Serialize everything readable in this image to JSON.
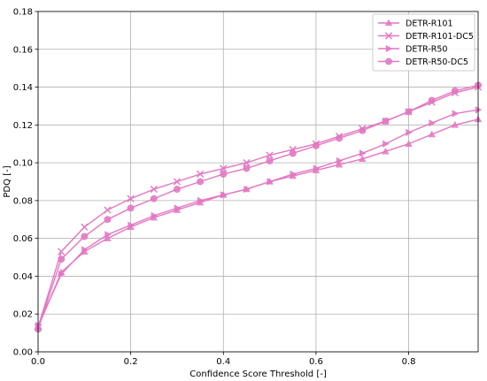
{
  "chart_data": {
    "type": "line",
    "title": "",
    "xlabel": "Confidence Score Threshold [-]",
    "ylabel": "PDQ [-]",
    "xlim": [
      0.0,
      0.95
    ],
    "ylim": [
      0.0,
      0.18
    ],
    "x_ticks": [
      "0.0",
      "0.2",
      "0.4",
      "0.6",
      "0.8"
    ],
    "y_ticks": [
      "0.00",
      "0.02",
      "0.04",
      "0.06",
      "0.08",
      "0.10",
      "0.12",
      "0.14",
      "0.16",
      "0.18"
    ],
    "grid": true,
    "legend_position": "top-right",
    "x": [
      0.0,
      0.05,
      0.1,
      0.15,
      0.2,
      0.25,
      0.3,
      0.35,
      0.4,
      0.45,
      0.5,
      0.55,
      0.6,
      0.65,
      0.7,
      0.75,
      0.8,
      0.85,
      0.9,
      0.95
    ],
    "series": [
      {
        "name": "DETR-R101",
        "marker": "triangle-up",
        "color": "#e377c2",
        "values": [
          0.013,
          0.042,
          0.053,
          0.06,
          0.066,
          0.071,
          0.075,
          0.079,
          0.083,
          0.086,
          0.09,
          0.093,
          0.096,
          0.099,
          0.102,
          0.106,
          0.11,
          0.115,
          0.12,
          0.123
        ]
      },
      {
        "name": "DETR-R101-DC5",
        "marker": "x",
        "color": "#e377c2",
        "values": [
          0.013,
          0.053,
          0.066,
          0.075,
          0.081,
          0.086,
          0.09,
          0.094,
          0.097,
          0.1,
          0.104,
          0.107,
          0.11,
          0.114,
          0.118,
          0.122,
          0.127,
          0.132,
          0.137,
          0.14
        ]
      },
      {
        "name": "DETR-R50",
        "marker": "triangle-right",
        "color": "#e377c2",
        "values": [
          0.014,
          0.041,
          0.054,
          0.062,
          0.067,
          0.072,
          0.076,
          0.08,
          0.083,
          0.086,
          0.09,
          0.094,
          0.097,
          0.101,
          0.105,
          0.11,
          0.116,
          0.121,
          0.126,
          0.128
        ]
      },
      {
        "name": "DETR-R50-DC5",
        "marker": "circle",
        "color": "#e377c2",
        "values": [
          0.012,
          0.049,
          0.061,
          0.07,
          0.076,
          0.081,
          0.086,
          0.09,
          0.094,
          0.097,
          0.101,
          0.105,
          0.109,
          0.113,
          0.117,
          0.122,
          0.127,
          0.133,
          0.138,
          0.141
        ]
      }
    ]
  }
}
